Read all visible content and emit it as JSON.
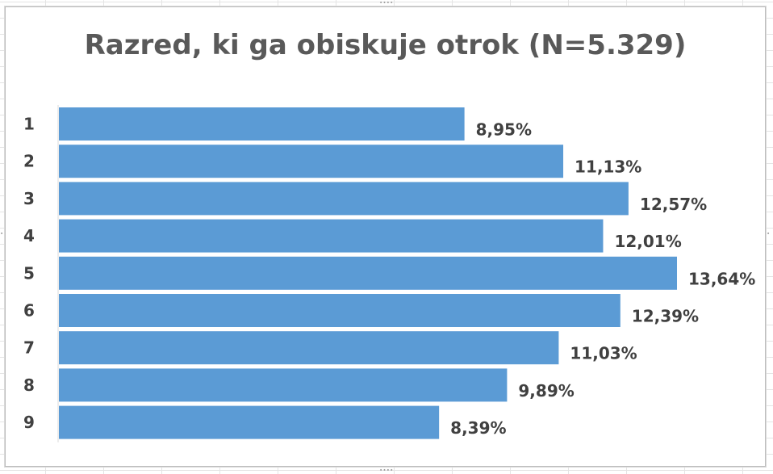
{
  "chart_data": {
    "type": "bar",
    "orientation": "horizontal",
    "title": "Razred, ki ga obiskuje otrok (N=5.329)",
    "categories": [
      "1",
      "2",
      "3",
      "4",
      "5",
      "6",
      "7",
      "8",
      "9"
    ],
    "values": [
      8.95,
      11.13,
      12.57,
      12.01,
      13.64,
      12.39,
      11.03,
      9.89,
      8.39
    ],
    "value_labels": [
      "8,95%",
      "11,13%",
      "12,57%",
      "12,01%",
      "13,64%",
      "12,39%",
      "11,03%",
      "9,89%",
      "8,39%"
    ],
    "xlim": [
      0,
      13.64
    ],
    "bar_color": "#5b9bd5",
    "grid": false,
    "legend": "none"
  }
}
